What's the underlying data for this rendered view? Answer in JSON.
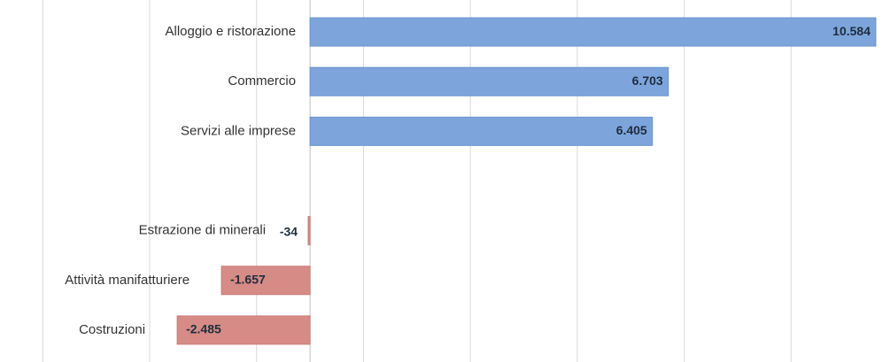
{
  "chart_data": {
    "type": "hbar",
    "categories": [
      "Alloggio e ristorazione",
      "Commercio",
      "Servizi alle imprese",
      null,
      "Estrazione di minerali",
      "Attività manifatturiere",
      "Costruzioni"
    ],
    "values": [
      10584,
      6703,
      6405,
      null,
      -34,
      -1657,
      -2485
    ],
    "value_labels": [
      "10.584",
      "6.703",
      "6.405",
      null,
      "-34",
      "-1.657",
      "-2.485"
    ],
    "positive_color": "#7da5dc",
    "negative_color": "#d68b87",
    "xlim": [
      -5800,
      10700
    ],
    "xticks": [
      -5000,
      -3000,
      -1000,
      1000,
      3000,
      5000,
      7000,
      9000
    ],
    "grid": true
  }
}
